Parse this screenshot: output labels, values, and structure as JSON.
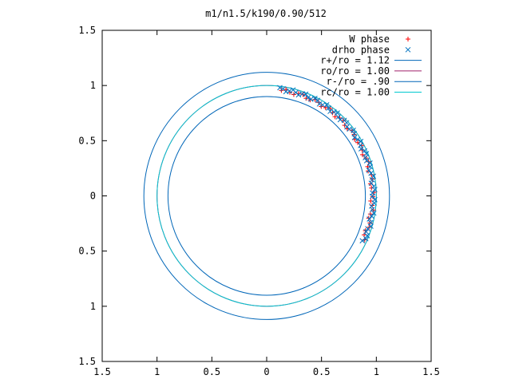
{
  "chart_data": {
    "type": "scatter",
    "title": "m1/n1.5/k190/0.90/512",
    "xlim": [
      -1.5,
      1.5
    ],
    "ylim": [
      -1.5,
      1.5
    ],
    "x_ticks": [
      {
        "value": -1.5,
        "label": "1.5"
      },
      {
        "value": -1.0,
        "label": "1"
      },
      {
        "value": -0.5,
        "label": "0.5"
      },
      {
        "value": 0.0,
        "label": "0"
      },
      {
        "value": 0.5,
        "label": "0.5"
      },
      {
        "value": 1.0,
        "label": "1"
      },
      {
        "value": 1.5,
        "label": "1.5"
      }
    ],
    "y_ticks": [
      {
        "value": 1.5,
        "label": "1.5"
      },
      {
        "value": 1.0,
        "label": "1"
      },
      {
        "value": 0.5,
        "label": "0.5"
      },
      {
        "value": 0.0,
        "label": "0"
      },
      {
        "value": -0.5,
        "label": "0.5"
      },
      {
        "value": -1.0,
        "label": "1"
      },
      {
        "value": -1.5,
        "label": "1.5"
      }
    ],
    "grid": false,
    "legend_position": "top-right",
    "series": [
      {
        "name": "W phase",
        "kind": "points",
        "marker": "plus",
        "color": "#ff0000",
        "arc": {
          "radius": 0.965,
          "from_deg": 82,
          "to_deg": -24,
          "count": 46
        }
      },
      {
        "name": "drho phase",
        "kind": "points",
        "marker": "cross",
        "color": "#0072c0",
        "arc": {
          "radius": 0.975,
          "from_deg": 83,
          "to_deg": -25,
          "count": 62
        }
      },
      {
        "name": "r+/ro = 1.12",
        "kind": "circle",
        "radius": 1.12,
        "color": "#0066b8"
      },
      {
        "name": "ro/ro = 1.00",
        "kind": "circle",
        "radius": 1.0,
        "color": "#a0206a"
      },
      {
        "name": "r-/ro = .90",
        "kind": "circle",
        "radius": 0.9,
        "color": "#0066b8"
      },
      {
        "name": "rc/ro = 1.00",
        "kind": "circle",
        "radius": 1.0,
        "color": "#00c8d0"
      }
    ]
  }
}
